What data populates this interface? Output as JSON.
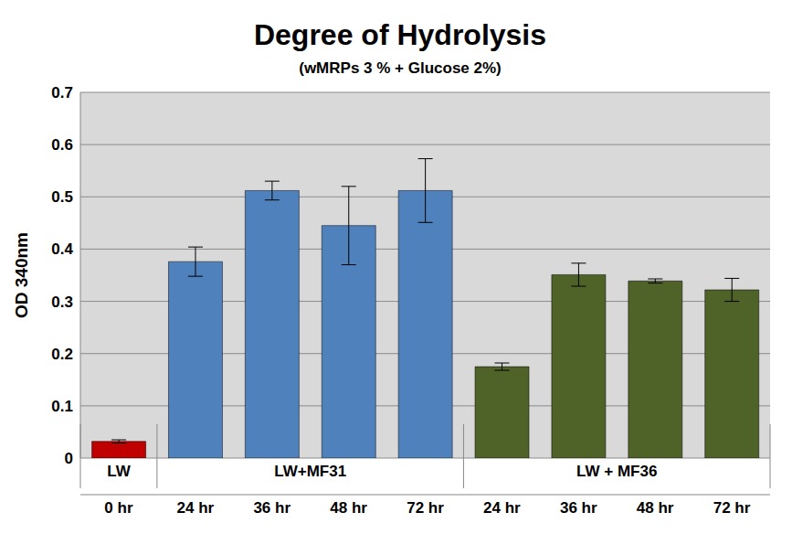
{
  "chart_data": {
    "type": "bar",
    "title": "Degree of Hydrolysis",
    "subtitle": "(wMRPs 3 % + Glucose 2%)",
    "y_label": "OD 340nm",
    "categories": [
      "0 hr",
      "24 hr",
      "36 hr",
      "48 hr",
      "72 hr",
      "24 hr",
      "36 hr",
      "48 hr",
      "72 hr"
    ],
    "groups": [
      "LW",
      "LW+MF31",
      "LW+MF31",
      "LW+MF31",
      "LW+MF31",
      "LW + MF36",
      "LW + MF36",
      "LW + MF36",
      "LW + MF36"
    ],
    "values": [
      0.032,
      0.376,
      0.512,
      0.445,
      0.512,
      0.175,
      0.351,
      0.339,
      0.322
    ],
    "errors": [
      0.003,
      0.028,
      0.018,
      0.075,
      0.061,
      0.007,
      0.022,
      0.004,
      0.022
    ],
    "colors": [
      "#c00000",
      "#4f81bd",
      "#4f81bd",
      "#4f81bd",
      "#4f81bd",
      "#4f6228",
      "#4f6228",
      "#4f6228",
      "#4f6228"
    ],
    "ylim": [
      0,
      0.7
    ],
    "yticks": [
      0,
      0.1,
      0.2,
      0.3,
      0.4,
      0.5,
      0.6,
      0.7
    ],
    "grid": true
  }
}
